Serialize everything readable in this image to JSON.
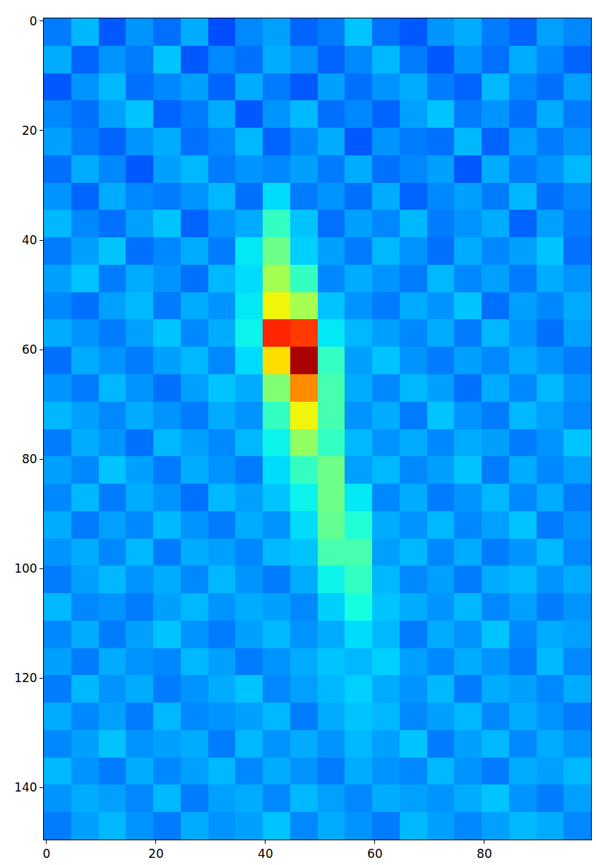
{
  "chart_data": {
    "type": "heatmap",
    "x": [
      2,
      7,
      12,
      17,
      22,
      27,
      32,
      37,
      42,
      47,
      52,
      57,
      62,
      67,
      72,
      77,
      82,
      87,
      92,
      97
    ],
    "y": [
      2,
      7,
      12,
      17,
      22,
      27,
      32,
      37,
      42,
      47,
      52,
      57,
      62,
      67,
      72,
      77,
      82,
      87,
      92,
      97,
      102,
      107,
      112,
      117,
      122,
      127,
      132,
      137,
      142,
      147
    ],
    "cells": [
      [
        0.36,
        0.41,
        0.33,
        0.38,
        0.35,
        0.4,
        0.32,
        0.37,
        0.39,
        0.34,
        0.36,
        0.42,
        0.35,
        0.33,
        0.38,
        0.4,
        0.36,
        0.34,
        0.39,
        0.37
      ],
      [
        0.4,
        0.34,
        0.38,
        0.36,
        0.42,
        0.33,
        0.37,
        0.35,
        0.4,
        0.38,
        0.34,
        0.37,
        0.41,
        0.36,
        0.33,
        0.38,
        0.35,
        0.4,
        0.37,
        0.34
      ],
      [
        0.33,
        0.38,
        0.41,
        0.35,
        0.37,
        0.39,
        0.34,
        0.4,
        0.36,
        0.33,
        0.39,
        0.35,
        0.38,
        0.4,
        0.36,
        0.34,
        0.41,
        0.37,
        0.35,
        0.39
      ],
      [
        0.37,
        0.35,
        0.39,
        0.42,
        0.34,
        0.36,
        0.4,
        0.33,
        0.38,
        0.41,
        0.35,
        0.37,
        0.34,
        0.39,
        0.42,
        0.36,
        0.38,
        0.35,
        0.4,
        0.36
      ],
      [
        0.39,
        0.36,
        0.34,
        0.38,
        0.4,
        0.35,
        0.37,
        0.41,
        0.34,
        0.37,
        0.4,
        0.33,
        0.38,
        0.36,
        0.35,
        0.41,
        0.34,
        0.39,
        0.36,
        0.38
      ],
      [
        0.35,
        0.4,
        0.37,
        0.33,
        0.39,
        0.41,
        0.36,
        0.38,
        0.37,
        0.39,
        0.36,
        0.4,
        0.35,
        0.37,
        0.39,
        0.33,
        0.4,
        0.36,
        0.38,
        0.41
      ],
      [
        0.38,
        0.34,
        0.4,
        0.37,
        0.36,
        0.38,
        0.41,
        0.35,
        0.44,
        0.36,
        0.38,
        0.35,
        0.4,
        0.34,
        0.37,
        0.39,
        0.36,
        0.41,
        0.35,
        0.37
      ],
      [
        0.41,
        0.37,
        0.35,
        0.39,
        0.42,
        0.34,
        0.38,
        0.4,
        0.5,
        0.42,
        0.35,
        0.39,
        0.37,
        0.41,
        0.36,
        0.38,
        0.4,
        0.34,
        0.39,
        0.36
      ],
      [
        0.36,
        0.39,
        0.42,
        0.35,
        0.37,
        0.4,
        0.36,
        0.45,
        0.56,
        0.43,
        0.39,
        0.36,
        0.41,
        0.38,
        0.35,
        0.4,
        0.37,
        0.39,
        0.42,
        0.35
      ],
      [
        0.39,
        0.42,
        0.36,
        0.4,
        0.38,
        0.35,
        0.41,
        0.44,
        0.62,
        0.5,
        0.37,
        0.4,
        0.38,
        0.36,
        0.41,
        0.37,
        0.39,
        0.36,
        0.4,
        0.38
      ],
      [
        0.37,
        0.35,
        0.39,
        0.41,
        0.36,
        0.4,
        0.38,
        0.45,
        0.7,
        0.62,
        0.42,
        0.38,
        0.36,
        0.4,
        0.38,
        0.42,
        0.35,
        0.39,
        0.37,
        0.4
      ],
      [
        0.4,
        0.38,
        0.36,
        0.39,
        0.42,
        0.37,
        0.4,
        0.46,
        0.9,
        0.88,
        0.45,
        0.41,
        0.39,
        0.37,
        0.4,
        0.36,
        0.41,
        0.38,
        0.35,
        0.39
      ],
      [
        0.35,
        0.4,
        0.38,
        0.36,
        0.39,
        0.41,
        0.37,
        0.44,
        0.72,
        0.97,
        0.5,
        0.39,
        0.42,
        0.38,
        0.36,
        0.39,
        0.37,
        0.4,
        0.38,
        0.36
      ],
      [
        0.38,
        0.36,
        0.41,
        0.38,
        0.35,
        0.39,
        0.42,
        0.4,
        0.58,
        0.8,
        0.52,
        0.4,
        0.37,
        0.41,
        0.39,
        0.35,
        0.4,
        0.37,
        0.41,
        0.38
      ],
      [
        0.41,
        0.39,
        0.37,
        0.4,
        0.38,
        0.36,
        0.4,
        0.38,
        0.5,
        0.7,
        0.52,
        0.38,
        0.4,
        0.36,
        0.42,
        0.38,
        0.36,
        0.41,
        0.39,
        0.37
      ],
      [
        0.36,
        0.4,
        0.38,
        0.35,
        0.41,
        0.39,
        0.37,
        0.41,
        0.46,
        0.6,
        0.5,
        0.41,
        0.38,
        0.4,
        0.37,
        0.4,
        0.39,
        0.36,
        0.38,
        0.42
      ],
      [
        0.39,
        0.37,
        0.42,
        0.39,
        0.36,
        0.4,
        0.38,
        0.36,
        0.44,
        0.5,
        0.56,
        0.39,
        0.41,
        0.37,
        0.39,
        0.42,
        0.36,
        0.4,
        0.37,
        0.39
      ],
      [
        0.37,
        0.41,
        0.36,
        0.4,
        0.38,
        0.35,
        0.41,
        0.39,
        0.42,
        0.46,
        0.56,
        0.45,
        0.37,
        0.4,
        0.36,
        0.38,
        0.41,
        0.37,
        0.4,
        0.36
      ],
      [
        0.4,
        0.36,
        0.39,
        0.37,
        0.41,
        0.38,
        0.36,
        0.4,
        0.38,
        0.44,
        0.55,
        0.48,
        0.4,
        0.38,
        0.41,
        0.37,
        0.39,
        0.42,
        0.36,
        0.38
      ],
      [
        0.38,
        0.4,
        0.37,
        0.41,
        0.36,
        0.4,
        0.39,
        0.37,
        0.41,
        0.42,
        0.52,
        0.52,
        0.39,
        0.41,
        0.37,
        0.4,
        0.36,
        0.38,
        0.41,
        0.37
      ],
      [
        0.36,
        0.39,
        0.41,
        0.38,
        0.4,
        0.37,
        0.41,
        0.38,
        0.36,
        0.4,
        0.46,
        0.5,
        0.41,
        0.37,
        0.39,
        0.36,
        0.4,
        0.41,
        0.38,
        0.4
      ],
      [
        0.41,
        0.37,
        0.38,
        0.36,
        0.39,
        0.41,
        0.38,
        0.4,
        0.39,
        0.37,
        0.43,
        0.47,
        0.42,
        0.4,
        0.38,
        0.41,
        0.37,
        0.39,
        0.36,
        0.38
      ],
      [
        0.37,
        0.4,
        0.36,
        0.39,
        0.42,
        0.38,
        0.36,
        0.39,
        0.41,
        0.38,
        0.4,
        0.44,
        0.41,
        0.36,
        0.4,
        0.38,
        0.42,
        0.37,
        0.4,
        0.39
      ],
      [
        0.39,
        0.36,
        0.4,
        0.38,
        0.37,
        0.41,
        0.39,
        0.36,
        0.38,
        0.4,
        0.42,
        0.41,
        0.43,
        0.39,
        0.37,
        0.4,
        0.38,
        0.36,
        0.41,
        0.37
      ],
      [
        0.36,
        0.41,
        0.38,
        0.4,
        0.36,
        0.38,
        0.4,
        0.42,
        0.37,
        0.39,
        0.41,
        0.43,
        0.4,
        0.38,
        0.41,
        0.36,
        0.4,
        0.39,
        0.37,
        0.4
      ],
      [
        0.4,
        0.37,
        0.39,
        0.36,
        0.41,
        0.37,
        0.38,
        0.39,
        0.41,
        0.36,
        0.4,
        0.42,
        0.41,
        0.37,
        0.39,
        0.41,
        0.37,
        0.4,
        0.38,
        0.36
      ],
      [
        0.37,
        0.39,
        0.42,
        0.38,
        0.39,
        0.4,
        0.36,
        0.41,
        0.38,
        0.4,
        0.38,
        0.41,
        0.39,
        0.42,
        0.36,
        0.39,
        0.41,
        0.37,
        0.4,
        0.38
      ],
      [
        0.41,
        0.38,
        0.36,
        0.4,
        0.37,
        0.39,
        0.41,
        0.37,
        0.4,
        0.38,
        0.36,
        0.4,
        0.38,
        0.37,
        0.41,
        0.38,
        0.36,
        0.4,
        0.39,
        0.41
      ],
      [
        0.38,
        0.4,
        0.39,
        0.37,
        0.41,
        0.36,
        0.39,
        0.4,
        0.37,
        0.41,
        0.39,
        0.37,
        0.4,
        0.39,
        0.38,
        0.4,
        0.42,
        0.38,
        0.36,
        0.39
      ],
      [
        0.36,
        0.39,
        0.41,
        0.38,
        0.36,
        0.4,
        0.38,
        0.39,
        0.42,
        0.37,
        0.4,
        0.38,
        0.36,
        0.41,
        0.39,
        0.37,
        0.39,
        0.41,
        0.4,
        0.37
      ]
    ],
    "zlim": [
      0.15,
      1.0
    ],
    "xlim": [
      -0.5,
      99.5
    ],
    "ylim": [
      149.5,
      -0.5
    ],
    "xticks": [
      0,
      20,
      40,
      60,
      80
    ],
    "yticks": [
      0,
      20,
      40,
      60,
      80,
      100,
      120,
      140
    ],
    "grid": false
  }
}
